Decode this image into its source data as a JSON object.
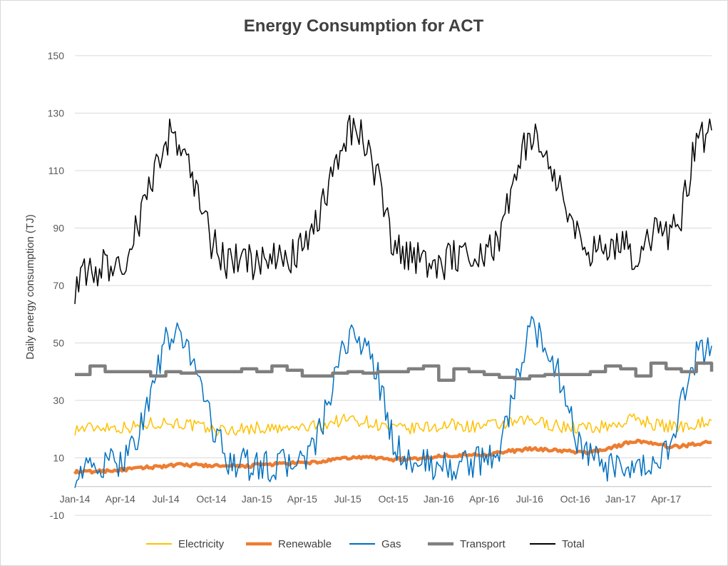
{
  "chart_data": {
    "type": "line",
    "title": "Energy Consumption for ACT",
    "xlabel": "",
    "ylabel": "Daily energy consumption (TJ)",
    "ylim": [
      -10,
      150
    ],
    "yticks": [
      "150",
      "130",
      "110",
      "90",
      "70",
      "50",
      "30",
      "10",
      "-10"
    ],
    "xticks": [
      "Jan-14",
      "Apr-14",
      "Jul-14",
      "Oct-14",
      "Jan-15",
      "Apr-15",
      "Jul-15",
      "Oct-15",
      "Jan-16",
      "Apr-16",
      "Jul-16",
      "Oct-16",
      "Jan-17",
      "Apr-17"
    ],
    "grid": "horizontal",
    "legend": "bottom",
    "x": [
      "Jan-14",
      "Feb-14",
      "Mar-14",
      "Apr-14",
      "May-14",
      "Jun-14",
      "Jul-14",
      "Aug-14",
      "Sep-14",
      "Oct-14",
      "Nov-14",
      "Dec-14",
      "Jan-15",
      "Feb-15",
      "Mar-15",
      "Apr-15",
      "May-15",
      "Jun-15",
      "Jul-15",
      "Aug-15",
      "Sep-15",
      "Oct-15",
      "Nov-15",
      "Dec-15",
      "Jan-16",
      "Feb-16",
      "Mar-16",
      "Apr-16",
      "May-16",
      "Jun-16",
      "Jul-16",
      "Aug-16",
      "Sep-16",
      "Oct-16",
      "Nov-16",
      "Dec-16",
      "Jan-17",
      "Feb-17",
      "Mar-17",
      "Apr-17",
      "May-17",
      "Jun-17",
      "Jul-17"
    ],
    "series": [
      {
        "name": "Electricity",
        "color": "#FFC000",
        "width": 1.5,
        "values": [
          20,
          20.5,
          21,
          20.5,
          21,
          22,
          22.5,
          22,
          21,
          20,
          19.5,
          20,
          20.5,
          20,
          20,
          20.5,
          21,
          22.5,
          23.5,
          23,
          21.5,
          20,
          20,
          20.5,
          21,
          21.5,
          21,
          21,
          21.5,
          22,
          23,
          22,
          21,
          20.5,
          20.5,
          21,
          22,
          24,
          22,
          21,
          21,
          22,
          23
        ]
      },
      {
        "name": "Renewable",
        "color": "#ED7D31",
        "width": 4.5,
        "values": [
          5,
          5.2,
          5.5,
          5.8,
          6.2,
          6.8,
          7.2,
          7.5,
          7.5,
          7.3,
          7,
          7,
          7.5,
          7.8,
          8,
          8.2,
          8.5,
          9.2,
          10,
          10.2,
          10,
          9.5,
          9.5,
          10,
          10.5,
          11,
          11,
          11.2,
          11.8,
          12.5,
          13,
          13,
          12.5,
          12,
          12,
          13,
          14.5,
          16,
          15,
          14,
          14,
          15,
          15.5
        ]
      },
      {
        "name": "Gas",
        "color": "#0070C0",
        "width": 1.5,
        "values": [
          5,
          6,
          7,
          9,
          16,
          32,
          51,
          52,
          43,
          22,
          10,
          8,
          7,
          7,
          8,
          9,
          16,
          34,
          52,
          51,
          38,
          15,
          9,
          8,
          7,
          7,
          8,
          9,
          13,
          33,
          56,
          50,
          38,
          18,
          10,
          7,
          5,
          5,
          7,
          12,
          28,
          45,
          49
        ]
      },
      {
        "name": "Transport",
        "color": "#7F7F7F",
        "width": 4.5,
        "values": [
          39,
          42,
          40,
          40,
          40,
          38.5,
          40,
          39.5,
          40,
          40,
          40,
          41,
          40,
          42,
          40.5,
          38.5,
          38.5,
          39.5,
          40,
          39.5,
          40,
          40,
          41,
          42,
          37,
          41,
          40,
          39,
          38,
          37.5,
          38.5,
          39,
          39,
          39,
          40,
          42,
          41,
          38.5,
          43,
          41,
          40,
          43,
          40
        ]
      },
      {
        "name": "Total",
        "color": "#000000",
        "width": 1.5,
        "values": [
          70,
          75,
          77,
          76,
          88,
          105,
          122,
          120,
          104,
          85,
          78,
          79,
          77,
          78,
          80,
          82,
          91,
          110,
          125,
          123,
          107,
          82,
          80,
          80,
          76,
          81,
          82,
          80,
          88,
          105,
          124,
          115,
          104,
          87,
          82,
          85,
          85,
          80,
          88,
          86,
          95,
          120,
          124
        ]
      }
    ]
  }
}
